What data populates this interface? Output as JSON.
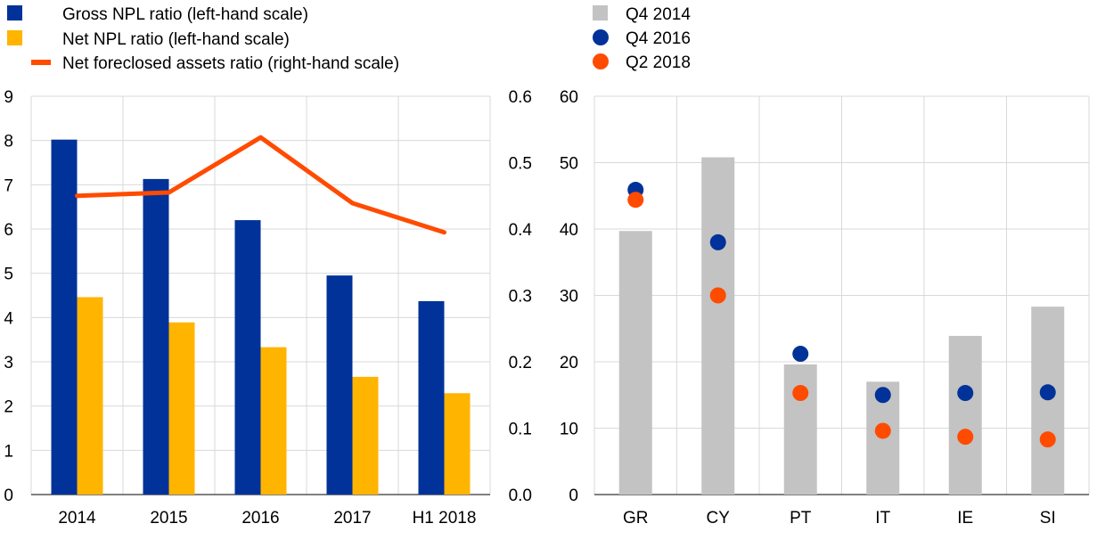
{
  "colors": {
    "gross_npl": "#003299",
    "net_npl": "#FFB400",
    "foreclosed": "#FF4B00",
    "q4_2014": "#C3C3C3",
    "q4_2016": "#003299",
    "q2_2018": "#FF4B00",
    "grid": "#D9D9D9"
  },
  "chart_data": [
    {
      "type": "bar",
      "categories": [
        "2014",
        "2015",
        "2016",
        "2017",
        "H1 2018"
      ],
      "series": [
        {
          "name": "Gross NPL ratio (left-hand scale)",
          "kind": "bar",
          "axis": "left",
          "values": [
            8.02,
            7.13,
            6.2,
            4.95,
            4.37
          ]
        },
        {
          "name": "Net NPL ratio (left-hand scale)",
          "kind": "bar",
          "axis": "left",
          "values": [
            4.46,
            3.89,
            3.33,
            2.66,
            2.29
          ]
        },
        {
          "name": "Net foreclosed assets ratio (right-hand scale)",
          "kind": "line",
          "axis": "right",
          "values": [
            0.45,
            0.455,
            0.538,
            0.439,
            0.395
          ]
        }
      ],
      "left_axis": {
        "ylim": [
          0,
          9
        ],
        "ticks": [
          "0",
          "1",
          "2",
          "3",
          "4",
          "5",
          "6",
          "7",
          "8",
          "9"
        ]
      },
      "right_axis": {
        "ylim": [
          0,
          0.6
        ],
        "ticks": [
          "0.0",
          "0.1",
          "0.2",
          "0.3",
          "0.4",
          "0.5",
          "0.6"
        ]
      },
      "grid": true,
      "legend": "top-left"
    },
    {
      "type": "bar",
      "categories": [
        "GR",
        "CY",
        "PT",
        "IT",
        "IE",
        "SI"
      ],
      "series": [
        {
          "name": "Q4 2014",
          "kind": "bar",
          "values": [
            39.7,
            50.8,
            19.6,
            17.0,
            23.9,
            28.3
          ]
        },
        {
          "name": "Q4 2016",
          "kind": "point",
          "values": [
            45.9,
            38.0,
            21.2,
            15.0,
            15.3,
            15.4
          ]
        },
        {
          "name": "Q2 2018",
          "kind": "point",
          "values": [
            44.4,
            30.0,
            15.3,
            9.6,
            8.7,
            8.3
          ]
        }
      ],
      "y_axis": {
        "ylim": [
          0,
          60
        ],
        "ticks": [
          "0",
          "10",
          "20",
          "30",
          "40",
          "50",
          "60"
        ]
      },
      "grid": true,
      "legend": "top"
    }
  ]
}
